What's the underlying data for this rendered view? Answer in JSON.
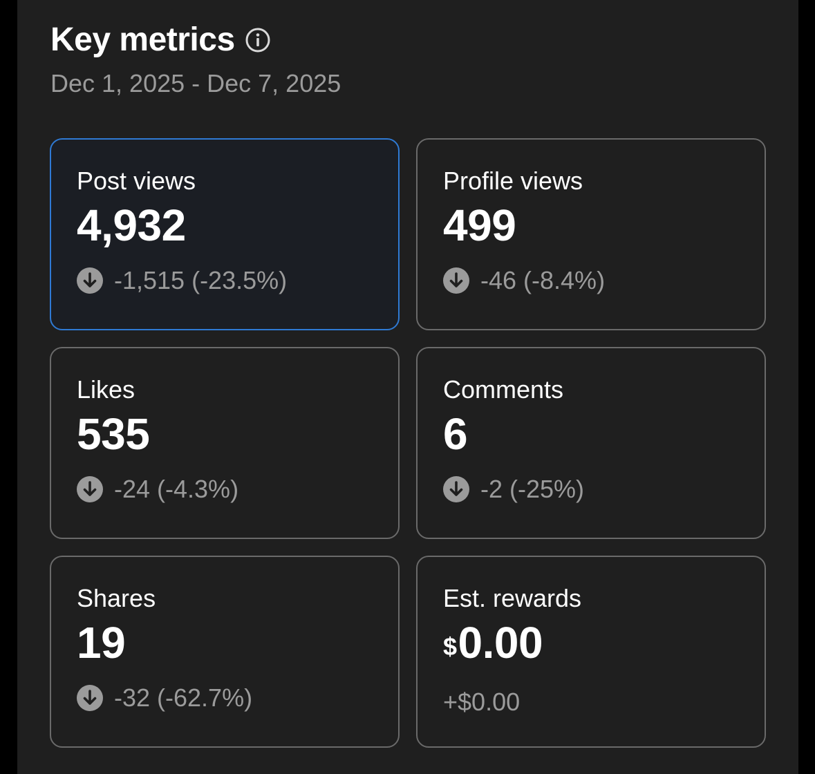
{
  "header": {
    "title": "Key metrics",
    "date_range": "Dec 1, 2025 - Dec 7, 2025"
  },
  "metrics": [
    {
      "label": "Post views",
      "value": "4,932",
      "change": "-1,515 (-23.5%)",
      "trend": "down",
      "selected": true
    },
    {
      "label": "Profile views",
      "value": "499",
      "change": "-46 (-8.4%)",
      "trend": "down"
    },
    {
      "label": "Likes",
      "value": "535",
      "change": "-24 (-4.3%)",
      "trend": "down"
    },
    {
      "label": "Comments",
      "value": "6",
      "change": "-2 (-25%)",
      "trend": "down"
    },
    {
      "label": "Shares",
      "value": "19",
      "change": "-32 (-62.7%)",
      "trend": "down"
    },
    {
      "label": "Est. rewards",
      "currency": "$",
      "value": "0.00",
      "change": "+$0.00",
      "trend": "none"
    }
  ],
  "icons": {
    "info": "info-icon",
    "trend_down": "arrow-down-circle-icon"
  },
  "colors": {
    "background": "#1f1f1f",
    "selected_border": "#2f7ad4",
    "muted_text": "#9b9b9b"
  }
}
